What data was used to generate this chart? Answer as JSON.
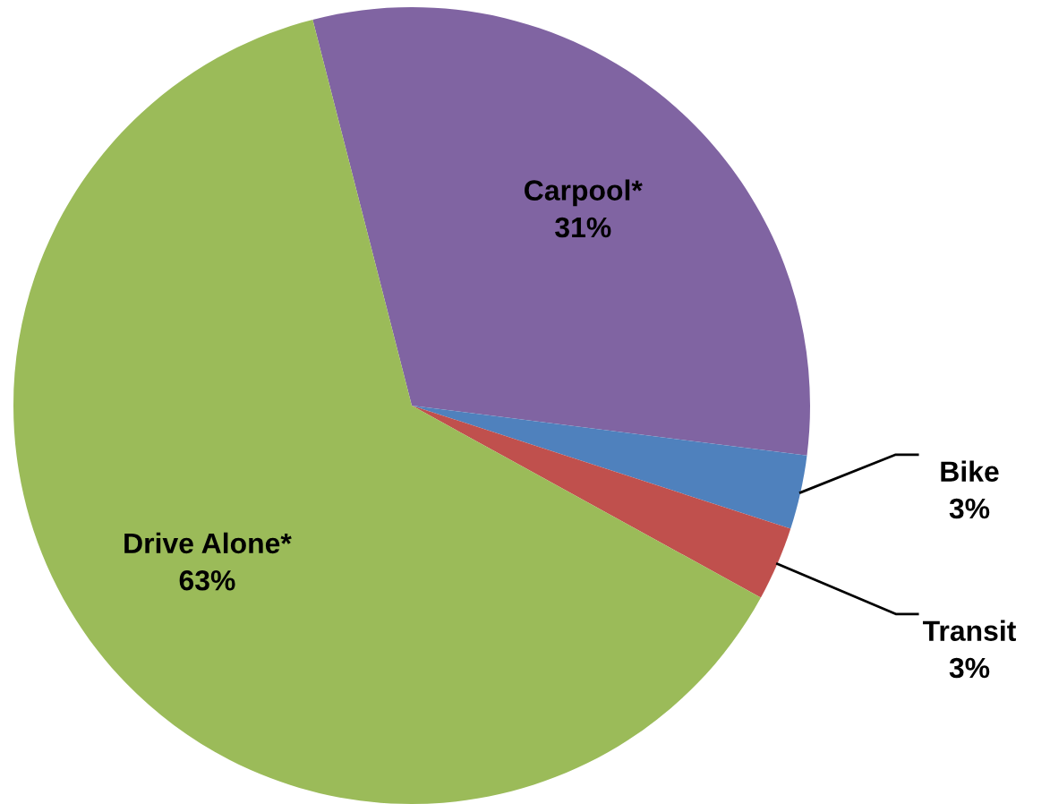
{
  "chart_data": {
    "type": "pie",
    "categories": [
      "Carpool*",
      "Bike",
      "Transit",
      "Drive Alone*"
    ],
    "values": [
      31,
      3,
      3,
      63
    ],
    "value_labels": [
      "31%",
      "3%",
      "3%",
      "63%"
    ],
    "colors": [
      "#8064a2",
      "#4f81bd",
      "#c0504d",
      "#9bbb59"
    ]
  }
}
